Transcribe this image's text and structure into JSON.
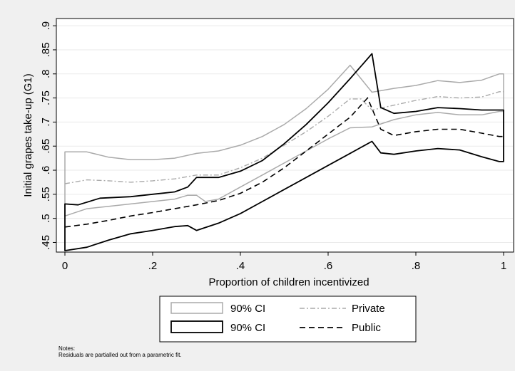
{
  "chart_data": {
    "type": "line",
    "title": "",
    "xlabel": "Proportion of children incentivized",
    "ylabel": "Initial grapes take-up (G1)",
    "xlim": [
      0,
      1
    ],
    "ylim": [
      0.43,
      0.915
    ],
    "xticks": [
      0,
      0.2,
      0.4,
      0.6,
      0.8,
      1
    ],
    "xtick_labels": [
      "0",
      ".2",
      ".4",
      ".6",
      ".8",
      "1"
    ],
    "yticks": [
      0.45,
      0.5,
      0.55,
      0.6,
      0.65,
      0.7,
      0.75,
      0.8,
      0.85,
      0.9
    ],
    "ytick_labels": [
      ".45",
      ".5",
      ".55",
      ".6",
      ".65",
      ".7",
      ".75",
      ".8",
      ".85",
      ".9"
    ],
    "grid": "horizontal",
    "legend_position": "bottom",
    "legend": [
      {
        "label": "90% CI",
        "style": "solid",
        "color": "#aaaaaa"
      },
      {
        "label": "Private",
        "style": "dash-dot",
        "color": "#aaaaaa"
      },
      {
        "label": "90% CI",
        "style": "solid",
        "color": "#000000"
      },
      {
        "label": "Public",
        "style": "dashed",
        "color": "#000000"
      }
    ],
    "series": [
      {
        "group": "private",
        "role": "upper",
        "color": "#aaaaaa",
        "style": "solid",
        "points": [
          [
            0,
            0.638
          ],
          [
            0.05,
            0.638
          ],
          [
            0.1,
            0.627
          ],
          [
            0.15,
            0.622
          ],
          [
            0.2,
            0.622
          ],
          [
            0.25,
            0.625
          ],
          [
            0.3,
            0.635
          ],
          [
            0.35,
            0.64
          ],
          [
            0.4,
            0.652
          ],
          [
            0.45,
            0.67
          ],
          [
            0.5,
            0.695
          ],
          [
            0.55,
            0.728
          ],
          [
            0.6,
            0.768
          ],
          [
            0.65,
            0.818
          ],
          [
            0.675,
            0.79
          ],
          [
            0.7,
            0.762
          ],
          [
            0.75,
            0.77
          ],
          [
            0.8,
            0.776
          ],
          [
            0.85,
            0.786
          ],
          [
            0.9,
            0.782
          ],
          [
            0.95,
            0.787
          ],
          [
            0.99,
            0.8
          ],
          [
            1,
            0.8
          ]
        ]
      },
      {
        "group": "private",
        "role": "lower",
        "color": "#aaaaaa",
        "style": "solid",
        "points": [
          [
            0,
            0.505
          ],
          [
            0.05,
            0.52
          ],
          [
            0.1,
            0.525
          ],
          [
            0.15,
            0.53
          ],
          [
            0.2,
            0.535
          ],
          [
            0.25,
            0.54
          ],
          [
            0.28,
            0.548
          ],
          [
            0.3,
            0.548
          ],
          [
            0.32,
            0.535
          ],
          [
            0.35,
            0.54
          ],
          [
            0.4,
            0.565
          ],
          [
            0.45,
            0.59
          ],
          [
            0.5,
            0.615
          ],
          [
            0.55,
            0.64
          ],
          [
            0.6,
            0.665
          ],
          [
            0.65,
            0.688
          ],
          [
            0.7,
            0.69
          ],
          [
            0.75,
            0.705
          ],
          [
            0.8,
            0.715
          ],
          [
            0.85,
            0.72
          ],
          [
            0.9,
            0.715
          ],
          [
            0.95,
            0.715
          ],
          [
            0.99,
            0.722
          ],
          [
            1,
            0.722
          ]
        ]
      },
      {
        "group": "private",
        "role": "estimate",
        "color": "#aaaaaa",
        "style": "dash-dot",
        "points": [
          [
            0,
            0.572
          ],
          [
            0.05,
            0.58
          ],
          [
            0.1,
            0.578
          ],
          [
            0.15,
            0.575
          ],
          [
            0.2,
            0.578
          ],
          [
            0.25,
            0.582
          ],
          [
            0.3,
            0.59
          ],
          [
            0.35,
            0.59
          ],
          [
            0.4,
            0.605
          ],
          [
            0.45,
            0.625
          ],
          [
            0.5,
            0.652
          ],
          [
            0.55,
            0.68
          ],
          [
            0.6,
            0.712
          ],
          [
            0.65,
            0.748
          ],
          [
            0.675,
            0.748
          ],
          [
            0.7,
            0.725
          ],
          [
            0.75,
            0.735
          ],
          [
            0.8,
            0.745
          ],
          [
            0.85,
            0.753
          ],
          [
            0.9,
            0.75
          ],
          [
            0.95,
            0.752
          ],
          [
            0.99,
            0.763
          ],
          [
            1,
            0.763
          ]
        ]
      },
      {
        "group": "public",
        "role": "upper",
        "color": "#000000",
        "style": "solid",
        "points": [
          [
            0,
            0.53
          ],
          [
            0.03,
            0.528
          ],
          [
            0.08,
            0.542
          ],
          [
            0.15,
            0.545
          ],
          [
            0.2,
            0.55
          ],
          [
            0.25,
            0.555
          ],
          [
            0.28,
            0.565
          ],
          [
            0.3,
            0.585
          ],
          [
            0.35,
            0.585
          ],
          [
            0.4,
            0.598
          ],
          [
            0.45,
            0.62
          ],
          [
            0.5,
            0.655
          ],
          [
            0.55,
            0.695
          ],
          [
            0.6,
            0.74
          ],
          [
            0.65,
            0.79
          ],
          [
            0.7,
            0.842
          ],
          [
            0.72,
            0.73
          ],
          [
            0.75,
            0.718
          ],
          [
            0.8,
            0.722
          ],
          [
            0.85,
            0.73
          ],
          [
            0.9,
            0.728
          ],
          [
            0.95,
            0.725
          ],
          [
            0.99,
            0.725
          ],
          [
            1,
            0.725
          ]
        ]
      },
      {
        "group": "public",
        "role": "lower",
        "color": "#000000",
        "style": "solid",
        "points": [
          [
            0,
            0.433
          ],
          [
            0.05,
            0.44
          ],
          [
            0.1,
            0.455
          ],
          [
            0.15,
            0.468
          ],
          [
            0.2,
            0.475
          ],
          [
            0.25,
            0.483
          ],
          [
            0.28,
            0.485
          ],
          [
            0.3,
            0.475
          ],
          [
            0.35,
            0.49
          ],
          [
            0.4,
            0.51
          ],
          [
            0.45,
            0.535
          ],
          [
            0.5,
            0.56
          ],
          [
            0.55,
            0.585
          ],
          [
            0.6,
            0.61
          ],
          [
            0.65,
            0.635
          ],
          [
            0.7,
            0.66
          ],
          [
            0.72,
            0.636
          ],
          [
            0.75,
            0.633
          ],
          [
            0.8,
            0.64
          ],
          [
            0.85,
            0.645
          ],
          [
            0.9,
            0.642
          ],
          [
            0.95,
            0.628
          ],
          [
            0.99,
            0.618
          ],
          [
            1,
            0.618
          ]
        ]
      },
      {
        "group": "public",
        "role": "estimate",
        "color": "#000000",
        "style": "dashed",
        "points": [
          [
            0,
            0.482
          ],
          [
            0.05,
            0.488
          ],
          [
            0.1,
            0.496
          ],
          [
            0.15,
            0.505
          ],
          [
            0.2,
            0.512
          ],
          [
            0.25,
            0.52
          ],
          [
            0.3,
            0.528
          ],
          [
            0.35,
            0.537
          ],
          [
            0.4,
            0.552
          ],
          [
            0.45,
            0.575
          ],
          [
            0.5,
            0.605
          ],
          [
            0.55,
            0.64
          ],
          [
            0.6,
            0.675
          ],
          [
            0.65,
            0.71
          ],
          [
            0.69,
            0.75
          ],
          [
            0.72,
            0.685
          ],
          [
            0.75,
            0.672
          ],
          [
            0.8,
            0.68
          ],
          [
            0.85,
            0.685
          ],
          [
            0.9,
            0.685
          ],
          [
            0.95,
            0.677
          ],
          [
            0.99,
            0.67
          ],
          [
            1,
            0.67
          ]
        ]
      }
    ],
    "notes": [
      "Notes:",
      "Residuals are partialled out from a parametric fit."
    ]
  }
}
